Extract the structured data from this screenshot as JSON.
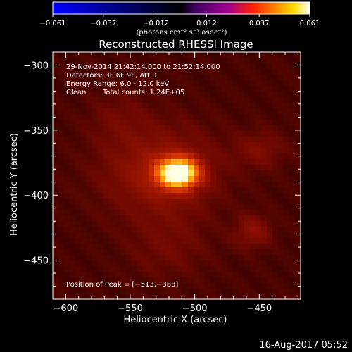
{
  "colorbar": {
    "min": -0.061,
    "max": 0.061,
    "ticks": [
      -0.061,
      -0.037,
      -0.012,
      0.012,
      0.037,
      0.061
    ],
    "tick_labels": [
      "−0.061",
      "−0.037",
      "−0.012",
      "0.012",
      "0.037",
      "0.061"
    ],
    "unit_label": "(photons cm⁻² s⁻¹ asec⁻²)",
    "colors": [
      "#0000ff",
      "#000000",
      "#3a0060",
      "#a00090",
      "#ff2000",
      "#ff8000",
      "#ffe000",
      "#ffffff"
    ]
  },
  "chart_data": {
    "type": "heatmap",
    "title": "Reconstructed RHESSI Image",
    "xlabel": "Heliocentric X (arcsec)",
    "ylabel": "Heliocentric Y (arcsec)",
    "xlim": [
      -610,
      -418
    ],
    "ylim": [
      -480,
      -290
    ],
    "xticks": [
      -600,
      -550,
      -500,
      -450
    ],
    "yticks": [
      -300,
      -350,
      -400,
      -450
    ],
    "xtick_labels": [
      "−600",
      "−550",
      "−500",
      "−450"
    ],
    "ytick_labels": [
      "−300",
      "−350",
      "−400",
      "−450"
    ],
    "peak_position": [
      -513,
      -383
    ],
    "sources": [
      {
        "x": -513,
        "y": -383,
        "sigma_x": 11,
        "sigma_y": 8,
        "amp": 1.0
      },
      {
        "x": -528,
        "y": -382,
        "sigma_x": 30,
        "sigma_y": 24,
        "amp": 0.22
      },
      {
        "x": -455,
        "y": -428,
        "sigma_x": 10,
        "sigma_y": 9,
        "amp": 0.16
      },
      {
        "x": -450,
        "y": -365,
        "sigma_x": 14,
        "sigma_y": 10,
        "amp": 0.12
      },
      {
        "x": -560,
        "y": -340,
        "sigma_x": 16,
        "sigma_y": 14,
        "amp": 0.07
      },
      {
        "x": -520,
        "y": -440,
        "sigma_x": 22,
        "sigma_y": 18,
        "amp": 0.08
      }
    ],
    "annotations": {
      "time_range": "29-Nov-2014 21:42:14.000 to 21:52:14.000",
      "detectors": "Detectors: 3F 6F 9F, Att 0",
      "energy": "Energy Range: 6.0 - 12.0 keV",
      "clean": "Clean",
      "counts": "Total counts: 1.24E+05",
      "peak": "Position of Peak = [−513,−383]"
    }
  },
  "footer": {
    "date": "16-Aug-2017 05:52"
  }
}
